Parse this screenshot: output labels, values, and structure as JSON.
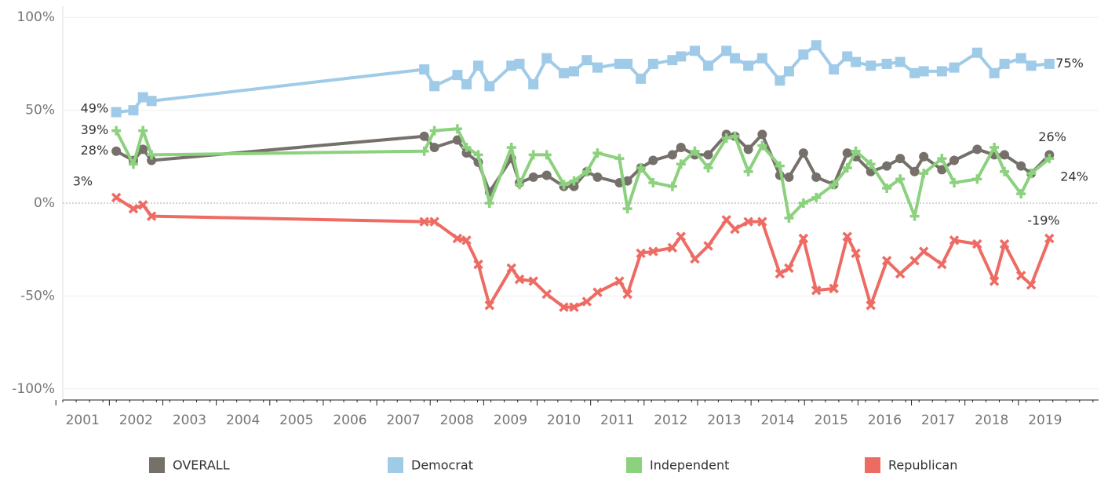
{
  "chart_data": {
    "type": "line",
    "x": [
      2001.63,
      2001.95,
      2002.13,
      2002.29,
      2007.39,
      2007.58,
      2008.01,
      2008.18,
      2008.4,
      2008.61,
      2009.02,
      2009.17,
      2009.43,
      2009.68,
      2010.0,
      2010.19,
      2010.43,
      2010.63,
      2011.04,
      2011.19,
      2011.44,
      2011.67,
      2012.03,
      2012.19,
      2012.45,
      2012.7,
      2013.04,
      2013.2,
      2013.45,
      2013.71,
      2014.04,
      2014.21,
      2014.48,
      2014.72,
      2015.05,
      2015.3,
      2015.46,
      2015.74,
      2016.04,
      2016.29,
      2016.56,
      2016.73,
      2017.07,
      2017.3,
      2017.73,
      2018.05,
      2018.24,
      2018.55,
      2018.74,
      2019.08
    ],
    "series": [
      {
        "name": "OVERALL",
        "color": "#76706b",
        "marker": "circle",
        "values": [
          28,
          23,
          29,
          23,
          36,
          30,
          34,
          27,
          22,
          6,
          24,
          11,
          14,
          15,
          9,
          9,
          17,
          14,
          11,
          12,
          19,
          23,
          26,
          30,
          26,
          26,
          37,
          36,
          29,
          37,
          15,
          14,
          27,
          14,
          10,
          27,
          25,
          17,
          20,
          24,
          17,
          25,
          18,
          23,
          29,
          26,
          26,
          20,
          16,
          26
        ],
        "value_labels": [
          "28%",
          null,
          null,
          null,
          null,
          null,
          null,
          null,
          null,
          null,
          null,
          null,
          null,
          null,
          null,
          null,
          null,
          null,
          null,
          null,
          null,
          null,
          null,
          null,
          null,
          null,
          null,
          null,
          null,
          null,
          null,
          null,
          null,
          null,
          null,
          null,
          null,
          null,
          null,
          null,
          null,
          null,
          null,
          null,
          null,
          null,
          null,
          null,
          null,
          "26%"
        ]
      },
      {
        "name": "Democrat",
        "color": "#a0cbe8",
        "marker": "square",
        "values": [
          49,
          50,
          57,
          55,
          72,
          63,
          69,
          64,
          74,
          63,
          74,
          75,
          64,
          78,
          70,
          71,
          77,
          73,
          75,
          75,
          67,
          75,
          77,
          79,
          82,
          74,
          82,
          78,
          74,
          78,
          66,
          71,
          80,
          85,
          72,
          79,
          76,
          74,
          75,
          76,
          70,
          71,
          71,
          73,
          81,
          70,
          75,
          78,
          74,
          75
        ],
        "value_labels": [
          "49%",
          null,
          null,
          null,
          null,
          null,
          null,
          null,
          null,
          null,
          null,
          null,
          null,
          null,
          null,
          null,
          null,
          null,
          null,
          null,
          null,
          null,
          null,
          null,
          null,
          null,
          null,
          null,
          null,
          null,
          null,
          null,
          null,
          null,
          null,
          null,
          null,
          null,
          null,
          null,
          null,
          null,
          null,
          null,
          null,
          null,
          null,
          null,
          null,
          "75%"
        ]
      },
      {
        "name": "Independent",
        "color": "#8cd17d",
        "marker": "plus",
        "values": [
          39,
          21,
          39,
          26,
          28,
          39,
          40,
          30,
          26,
          0,
          30,
          10,
          26,
          26,
          10,
          12,
          17,
          27,
          24,
          -3,
          19,
          11,
          9,
          21,
          28,
          19,
          35,
          36,
          17,
          31,
          20,
          -8,
          0,
          3,
          10,
          19,
          28,
          21,
          8,
          13,
          -7,
          16,
          24,
          11,
          13,
          30,
          17,
          5,
          16,
          24
        ],
        "value_labels": [
          "39%",
          null,
          null,
          null,
          null,
          null,
          null,
          null,
          null,
          null,
          null,
          null,
          null,
          null,
          null,
          null,
          null,
          null,
          null,
          null,
          null,
          null,
          null,
          null,
          null,
          null,
          null,
          null,
          null,
          null,
          null,
          null,
          null,
          null,
          null,
          null,
          null,
          null,
          null,
          null,
          null,
          null,
          null,
          null,
          null,
          null,
          null,
          null,
          null,
          "24%"
        ]
      },
      {
        "name": "Republican",
        "color": "#ee6b64",
        "marker": "cross",
        "values": [
          3,
          -3,
          -1,
          -7,
          -10,
          -10,
          -19,
          -20,
          -33,
          -55,
          -35,
          -41,
          -42,
          -49,
          -56,
          -56,
          -53,
          -48,
          -42,
          -49,
          -27,
          -26,
          -24,
          -18,
          -30,
          -23,
          -9,
          -14,
          -10,
          -10,
          -38,
          -35,
          -19,
          -47,
          -46,
          -18,
          -27,
          -55,
          -31,
          -38,
          -31,
          -26,
          -33,
          -20,
          -22,
          -42,
          -22,
          -39,
          -44,
          -19
        ],
        "value_labels": [
          "3%",
          null,
          null,
          null,
          null,
          null,
          null,
          null,
          null,
          null,
          null,
          null,
          null,
          null,
          null,
          null,
          null,
          null,
          null,
          null,
          null,
          null,
          null,
          null,
          null,
          null,
          null,
          null,
          null,
          null,
          null,
          null,
          null,
          null,
          null,
          null,
          null,
          null,
          null,
          null,
          null,
          null,
          null,
          null,
          null,
          null,
          null,
          null,
          null,
          "-19%"
        ]
      }
    ],
    "xlim": [
      2000.63,
      2020.0
    ],
    "xticks": [
      2001,
      2002,
      2003,
      2004,
      2005,
      2006,
      2007,
      2008,
      2009,
      2010,
      2011,
      2012,
      2013,
      2014,
      2015,
      2016,
      2017,
      2018,
      2019
    ],
    "ylim": [
      -106,
      106
    ],
    "yticks": [
      {
        "value": 100,
        "label": "100%"
      },
      {
        "value": 50,
        "label": "50%"
      },
      {
        "value": 0,
        "label": "0%"
      },
      {
        "value": -50,
        "label": "-50%"
      },
      {
        "value": -100,
        "label": "-100%"
      }
    ],
    "grid": true,
    "legend": "bottom"
  }
}
